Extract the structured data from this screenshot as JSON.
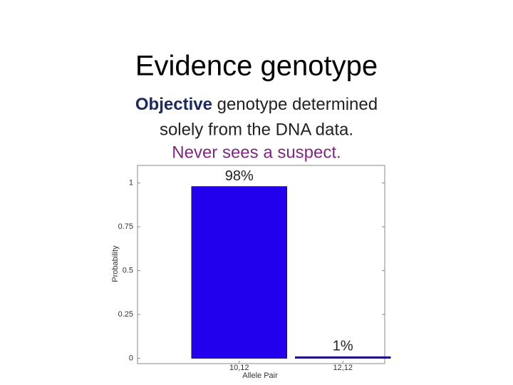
{
  "slide": {
    "title": "Evidence genotype",
    "subtitle": {
      "bold": "Objective",
      "line1_rest": " genotype determined",
      "line2": "solely from the DNA data.",
      "line3": "Never sees a suspect."
    }
  },
  "chart_data": {
    "type": "bar",
    "categories": [
      "10,12",
      "12,12"
    ],
    "values": [
      0.98,
      0.01
    ],
    "value_labels": [
      "98%",
      "1%"
    ],
    "color": "#2200ee",
    "x_label": "Allele Pair",
    "y_label": "Probability",
    "ylim": [
      -0.03,
      1.1
    ],
    "yticks": [
      0,
      0.25,
      0.5,
      0.75,
      1
    ],
    "grid": false
  }
}
